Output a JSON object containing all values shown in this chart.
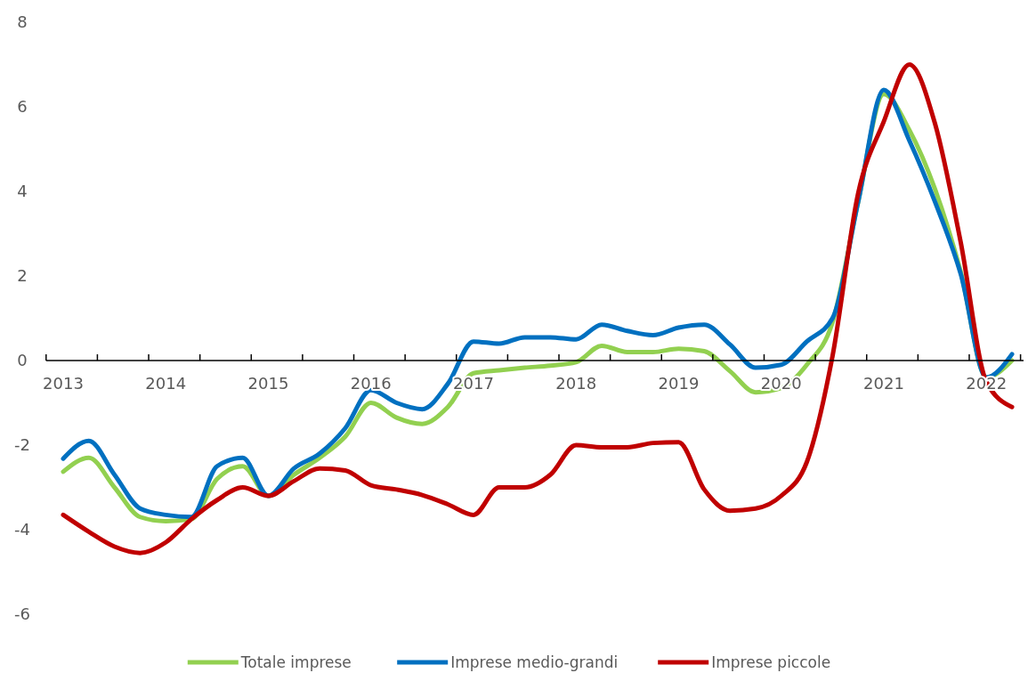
{
  "chart_data": {
    "type": "line",
    "categories": [
      "2013",
      null,
      null,
      null,
      "2014",
      null,
      null,
      null,
      "2015",
      null,
      null,
      null,
      "2016",
      null,
      null,
      null,
      "2017",
      null,
      null,
      null,
      "2018",
      null,
      null,
      null,
      "2019",
      null,
      null,
      null,
      "2020",
      null,
      null,
      null,
      "2021",
      null,
      null,
      null,
      "2022",
      null
    ],
    "series": [
      {
        "name": "Totale imprese",
        "color": "#92d050",
        "values": [
          -2.63,
          -2.3,
          -3.0,
          -3.7,
          -3.8,
          -3.75,
          -2.8,
          -2.5,
          -3.2,
          -2.7,
          -2.3,
          -1.8,
          -1.0,
          -1.35,
          -1.5,
          -1.1,
          -0.3,
          -0.23,
          -0.17,
          -0.12,
          -0.04,
          0.35,
          0.2,
          0.2,
          0.28,
          0.22,
          -0.25,
          -0.75,
          -0.65,
          -0.1,
          0.9,
          3.75,
          6.3,
          5.45,
          4.05,
          2.1,
          -0.4,
          0
        ]
      },
      {
        "name": "Imprese medio-grandi",
        "color": "#0070c0",
        "values": [
          -2.32,
          -1.9,
          -2.7,
          -3.5,
          -3.65,
          -3.7,
          -2.5,
          -2.3,
          -3.2,
          -2.55,
          -2.2,
          -1.6,
          -0.7,
          -1.0,
          -1.15,
          -0.55,
          0.45,
          0.4,
          0.55,
          0.55,
          0.5,
          0.85,
          0.7,
          0.6,
          0.78,
          0.85,
          0.38,
          -0.17,
          -0.1,
          0.45,
          1.0,
          3.75,
          6.4,
          5.2,
          3.75,
          2.05,
          -0.4,
          0.15
        ]
      },
      {
        "name": "Imprese piccole",
        "color": "#c00000",
        "values": [
          -3.65,
          -4.05,
          -4.4,
          -4.55,
          -4.3,
          -3.75,
          -3.3,
          -3.0,
          -3.2,
          -2.85,
          -2.55,
          -2.6,
          -2.95,
          -3.05,
          -3.18,
          -3.4,
          -3.65,
          -3.0,
          -3.0,
          -2.7,
          -2.0,
          -2.05,
          -2.05,
          -1.95,
          -1.93,
          -3.05,
          -3.55,
          -3.5,
          -3.2,
          -2.4,
          0.1,
          3.95,
          5.65,
          7.0,
          5.6,
          2.8,
          -0.5,
          -1.1
        ]
      }
    ],
    "ylim": [
      -6,
      8
    ],
    "yticks": [
      -6,
      -4,
      -2,
      0,
      2,
      4,
      6,
      8
    ],
    "grid": false,
    "legend": "bottom",
    "line_style": "solid"
  }
}
